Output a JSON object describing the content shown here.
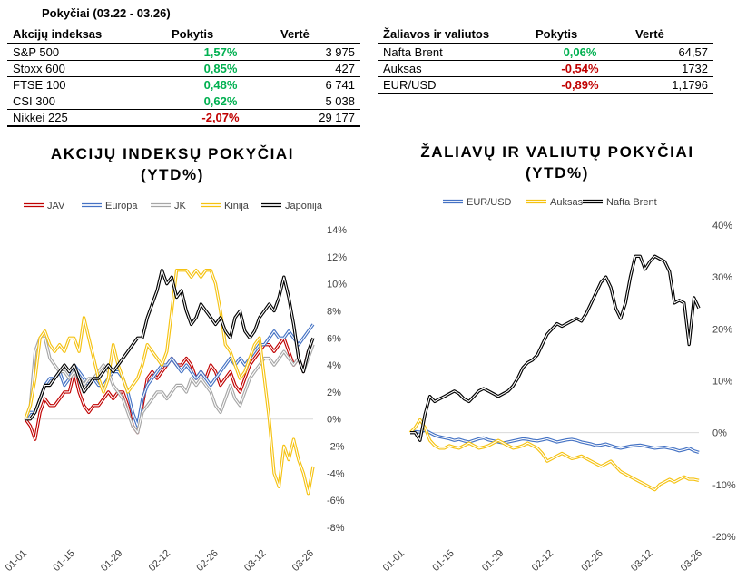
{
  "period_label": "Pokyčiai (03.22 - 03.26)",
  "colors": {
    "positive": "#00b050",
    "negative": "#c00000"
  },
  "indices_table": {
    "headers": [
      "Akcijų indeksas",
      "Pokytis",
      "Vertė"
    ],
    "rows": [
      {
        "name": "S&P 500",
        "change": "1,57%",
        "value": "3 975",
        "dir": "pos"
      },
      {
        "name": "Stoxx 600",
        "change": "0,85%",
        "value": "427",
        "dir": "pos"
      },
      {
        "name": "FTSE 100",
        "change": "0,48%",
        "value": "6 741",
        "dir": "pos"
      },
      {
        "name": "CSI 300",
        "change": "0,62%",
        "value": "5 038",
        "dir": "pos"
      },
      {
        "name": "Nikkei 225",
        "change": "-2,07%",
        "value": "29 177",
        "dir": "neg"
      }
    ]
  },
  "commodities_table": {
    "headers": [
      "Žaliavos ir valiutos",
      "Pokytis",
      "Vertė"
    ],
    "rows": [
      {
        "name": "Nafta Brent",
        "change": "0,06%",
        "value": "64,57",
        "dir": "pos"
      },
      {
        "name": "Auksas",
        "change": "-0,54%",
        "value": "1732",
        "dir": "neg"
      },
      {
        "name": "EUR/USD",
        "change": "-0,89%",
        "value": "1,1796",
        "dir": "neg"
      }
    ]
  },
  "chart_data": [
    {
      "type": "line",
      "title_line1": "AKCIJŲ INDEKSŲ POKYČIAI",
      "title_line2": "(YTD%)",
      "legend_position": "top",
      "x_ticks": [
        "01-01",
        "01-15",
        "01-29",
        "02-12",
        "02-26",
        "03-12",
        "03-26"
      ],
      "y_ticks": [
        "14%",
        "12%",
        "10%",
        "8%",
        "6%",
        "4%",
        "2%",
        "0%",
        "-2%",
        "-4%",
        "-6%",
        "-8%"
      ],
      "ylim": [
        -8,
        14
      ],
      "y_unit": "%",
      "series": [
        {
          "name": "JAV",
          "color": "#c00000",
          "values": [
            0,
            -0.5,
            -1.5,
            0.5,
            1.5,
            1.0,
            1.0,
            1.5,
            2.0,
            2.0,
            3.5,
            2.0,
            1.0,
            0.5,
            1.0,
            1.0,
            1.5,
            2.0,
            1.5,
            2.0,
            2.0,
            1.0,
            -0.5,
            -1.0,
            1.0,
            3.0,
            3.5,
            3.0,
            3.5,
            4.0,
            4.5,
            4.0,
            4.0,
            4.5,
            4.0,
            3.0,
            3.5,
            3.0,
            4.0,
            3.5,
            2.5,
            3.0,
            3.5,
            2.5,
            2.0,
            3.0,
            4.0,
            4.5,
            5.0,
            5.5,
            5.5,
            5.0,
            5.5,
            6.0,
            5.0,
            4.0,
            4.5,
            3.5,
            5.0,
            5.5
          ]
        },
        {
          "name": "Europa",
          "color": "#4472c4",
          "values": [
            0,
            0.5,
            0.5,
            1.5,
            2.5,
            3.0,
            3.0,
            3.5,
            2.5,
            3.0,
            4.0,
            3.5,
            3.0,
            2.5,
            3.0,
            2.5,
            2.5,
            3.0,
            3.5,
            3.5,
            3.0,
            2.0,
            0.5,
            -0.5,
            1.5,
            2.5,
            3.0,
            3.5,
            4.0,
            4.0,
            4.5,
            4.0,
            3.5,
            4.0,
            3.5,
            3.0,
            3.5,
            3.0,
            2.5,
            3.0,
            3.5,
            4.0,
            4.5,
            4.0,
            4.5,
            4.0,
            4.5,
            5.0,
            5.5,
            5.5,
            6.0,
            6.5,
            6.0,
            6.0,
            6.5,
            6.0,
            5.5,
            6.0,
            6.5,
            7.0
          ]
        },
        {
          "name": "JK",
          "color": "#a6a6a6",
          "values": [
            0,
            1.0,
            5.0,
            6.0,
            6.0,
            4.5,
            4.0,
            3.5,
            3.5,
            3.0,
            3.5,
            3.0,
            2.5,
            3.0,
            3.0,
            3.5,
            4.0,
            3.5,
            2.5,
            2.0,
            1.5,
            0.5,
            -0.5,
            -1.0,
            0.5,
            1.0,
            1.5,
            2.0,
            2.0,
            1.5,
            2.0,
            2.5,
            2.5,
            2.0,
            3.0,
            2.5,
            3.0,
            2.5,
            2.0,
            1.0,
            0.5,
            1.5,
            2.5,
            1.5,
            1.0,
            2.0,
            3.0,
            3.5,
            4.0,
            4.5,
            4.5,
            4.0,
            4.5,
            5.0,
            4.5,
            4.0,
            4.5,
            3.5,
            4.5,
            5.5
          ]
        },
        {
          "name": "Kinija",
          "color": "#f5c211",
          "values": [
            0,
            1.0,
            3.0,
            6.0,
            6.5,
            5.5,
            5.0,
            5.5,
            5.0,
            6.0,
            6.0,
            5.0,
            7.5,
            6.0,
            4.5,
            3.0,
            2.0,
            3.0,
            5.5,
            4.0,
            3.0,
            2.0,
            2.5,
            3.0,
            4.0,
            5.5,
            5.0,
            4.5,
            4.0,
            5.0,
            8.0,
            11.0,
            11.0,
            11.0,
            10.5,
            11.0,
            10.5,
            11.0,
            11.0,
            10.0,
            8.0,
            5.5,
            5.0,
            4.0,
            3.0,
            3.5,
            4.5,
            5.5,
            6.0,
            3.0,
            0.0,
            -4.0,
            -5.0,
            -2.0,
            -3.0,
            -1.5,
            -3.0,
            -4.0,
            -5.5,
            -3.5
          ]
        },
        {
          "name": "Japonija",
          "color": "#000000",
          "values": [
            0,
            0.0,
            0.5,
            1.5,
            2.5,
            2.5,
            3.0,
            3.5,
            4.0,
            3.5,
            4.0,
            3.0,
            2.0,
            2.5,
            3.0,
            3.0,
            3.5,
            4.0,
            3.5,
            4.0,
            4.5,
            5.0,
            5.5,
            6.0,
            6.0,
            7.5,
            8.5,
            9.5,
            11.0,
            10.0,
            10.5,
            9.0,
            9.5,
            8.0,
            7.0,
            7.5,
            8.5,
            8.0,
            7.5,
            7.0,
            7.5,
            6.5,
            6.0,
            7.5,
            8.0,
            6.5,
            6.0,
            6.5,
            7.5,
            8.0,
            8.5,
            8.0,
            9.0,
            10.5,
            9.0,
            7.0,
            4.5,
            3.5,
            5.0,
            6.0
          ]
        }
      ]
    },
    {
      "type": "line",
      "title_line1": "ŽALIAVŲ IR VALIUTŲ POKYČIAI",
      "title_line2": "(YTD%)",
      "legend_position": "top",
      "x_ticks": [
        "01-01",
        "01-15",
        "01-29",
        "02-12",
        "02-26",
        "03-12",
        "03-26"
      ],
      "y_ticks": [
        "40%",
        "30%",
        "20%",
        "10%",
        "0%",
        "-10%",
        "-20%"
      ],
      "ylim": [
        -20,
        40
      ],
      "y_unit": "%",
      "series": [
        {
          "name": "EUR/USD",
          "color": "#4472c4",
          "values": [
            0,
            0.2,
            0.1,
            0.5,
            0.0,
            -0.5,
            -0.8,
            -1.0,
            -1.2,
            -1.5,
            -1.3,
            -1.6,
            -1.8,
            -1.5,
            -1.2,
            -1.0,
            -1.4,
            -1.6,
            -1.8,
            -2.0,
            -1.8,
            -1.6,
            -1.4,
            -1.2,
            -1.3,
            -1.5,
            -1.6,
            -1.4,
            -1.2,
            -1.5,
            -1.8,
            -1.6,
            -1.4,
            -1.3,
            -1.5,
            -1.8,
            -2.0,
            -2.2,
            -2.5,
            -2.4,
            -2.2,
            -2.5,
            -2.8,
            -3.0,
            -2.8,
            -2.6,
            -2.5,
            -2.4,
            -2.6,
            -2.8,
            -3.0,
            -2.9,
            -2.8,
            -3.0,
            -3.2,
            -3.5,
            -3.3,
            -3.0,
            -3.5,
            -3.8
          ]
        },
        {
          "name": "Auksas",
          "color": "#f5c211",
          "values": [
            0,
            1.0,
            2.5,
            1.0,
            -1.5,
            -2.5,
            -3.0,
            -3.0,
            -2.5,
            -2.8,
            -3.0,
            -2.5,
            -2.0,
            -2.5,
            -3.0,
            -2.8,
            -2.5,
            -2.0,
            -1.5,
            -2.0,
            -2.5,
            -3.0,
            -2.8,
            -2.5,
            -2.0,
            -2.5,
            -3.0,
            -4.0,
            -5.5,
            -5.0,
            -4.5,
            -4.0,
            -4.5,
            -5.0,
            -4.8,
            -4.5,
            -5.0,
            -5.5,
            -6.0,
            -6.5,
            -6.0,
            -5.5,
            -6.5,
            -7.5,
            -8.0,
            -8.5,
            -9.0,
            -9.5,
            -10.0,
            -10.5,
            -11.0,
            -10.0,
            -9.5,
            -9.0,
            -9.5,
            -9.0,
            -8.5,
            -9.0,
            -9.0,
            -9.2
          ]
        },
        {
          "name": "Nafta Brent",
          "color": "#000000",
          "values": [
            0,
            0.0,
            -1.5,
            3.5,
            7.0,
            6.0,
            6.5,
            7.0,
            7.5,
            8.0,
            7.5,
            6.5,
            6.0,
            7.0,
            8.0,
            8.5,
            8.0,
            7.5,
            7.0,
            7.5,
            8.0,
            9.0,
            10.5,
            12.5,
            13.5,
            14.0,
            15.0,
            17.0,
            19.0,
            20.0,
            21.0,
            20.5,
            21.0,
            21.5,
            22.0,
            21.5,
            23.0,
            25.0,
            27.0,
            29.0,
            30.0,
            28.0,
            24.0,
            22.0,
            25.0,
            30.0,
            34.0,
            34.0,
            31.5,
            33.0,
            34.0,
            33.5,
            33.0,
            31.0,
            25.0,
            25.5,
            25.0,
            17.0,
            26.0,
            24.0
          ]
        }
      ]
    }
  ]
}
